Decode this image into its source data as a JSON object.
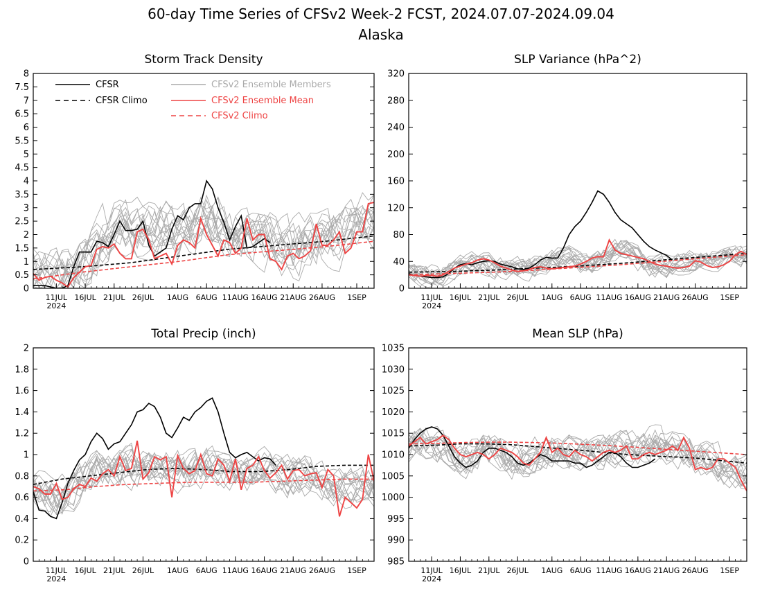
{
  "figure": {
    "title": "60-day Time Series of CFSv2 Week-2 FCST, 2024.07.07-2024.09.04",
    "subtitle": "Alaska"
  },
  "legend": {
    "cfsr": "CFSR",
    "cfsr_climo": "CFSR Climo",
    "members": "CFSv2 Ensemble Members",
    "mean": "CFSv2 Ensemble Mean",
    "cfsv2_climo": "CFSv2 Climo"
  },
  "colors": {
    "cfsr": "#000000",
    "members": "#aaaaaa",
    "mean": "#ee4444"
  },
  "x_axis": {
    "labels": [
      "11JUL",
      "16JUL",
      "21JUL",
      "26JUL",
      "1AUG",
      "6AUG",
      "11AUG",
      "16AUG",
      "21AUG",
      "26AUG",
      "1SEP"
    ],
    "label_days": [
      4,
      9,
      14,
      19,
      25,
      30,
      35,
      40,
      45,
      50,
      56
    ],
    "year_label": "2024",
    "n_days": 60
  },
  "chart_data": [
    {
      "type": "line",
      "title": "Storm Track Density",
      "ylim": [
        0,
        8
      ],
      "yticks": [
        "0",
        "0.5",
        "1",
        "1.5",
        "2",
        "2.5",
        "3",
        "3.5",
        "4",
        "4.5",
        "5",
        "5.5",
        "6",
        "6.5",
        "7",
        "7.5",
        "8"
      ],
      "members_base": [
        0.7,
        0.6,
        0.5,
        0.5,
        0.4,
        0.4,
        0.5,
        0.6,
        0.8,
        1.0,
        1.3,
        1.5,
        1.8,
        2.0,
        2.2,
        2.3,
        2.3,
        2.2,
        2.1,
        2.1,
        2.1,
        2.2,
        2.3,
        2.3,
        2.2,
        2.1,
        2.1,
        2.2,
        2.4,
        2.6,
        2.7,
        2.6,
        2.4,
        2.3,
        2.2,
        2.1,
        2.0,
        2.0,
        2.0,
        1.9,
        1.8,
        1.7,
        1.6,
        1.5,
        1.5,
        1.5,
        1.5,
        1.6,
        1.7,
        1.8,
        1.9,
        2.0,
        2.0,
        2.0,
        2.1,
        2.2,
        2.3,
        2.4,
        2.5,
        2.5
      ],
      "spread": 1.1,
      "series": [
        {
          "name": "CFSR",
          "x": [
            0,
            1,
            2,
            3,
            4,
            5,
            6,
            7,
            8,
            9,
            10,
            11,
            12,
            13,
            14,
            15,
            16,
            17,
            18,
            19,
            20,
            21,
            22,
            23,
            24,
            25,
            26,
            27,
            28,
            29,
            30,
            31,
            32,
            33,
            34,
            35,
            36,
            37,
            38,
            39,
            40,
            41,
            42,
            43
          ],
          "y": [
            0.1,
            0.1,
            0.1,
            0.05,
            0.0,
            0.0,
            0.1,
            0.8,
            1.35,
            1.35,
            1.35,
            1.75,
            1.7,
            1.55,
            2.0,
            2.5,
            2.15,
            2.15,
            2.2,
            2.5,
            1.6,
            1.2,
            1.35,
            1.5,
            2.2,
            2.7,
            2.55,
            3.0,
            3.15,
            3.15,
            4.0,
            3.7,
            3.0,
            2.45,
            1.8,
            2.3,
            2.7,
            1.5,
            1.55,
            1.7,
            1.85,
            1.7,
            null,
            null
          ]
        },
        {
          "name": "CFSR Climo",
          "x": [
            0,
            59
          ],
          "y": [
            0.7,
            1.95
          ],
          "curve": [
            0.7,
            0.8,
            0.95,
            1.2,
            1.45,
            1.6,
            1.75,
            1.95
          ]
        },
        {
          "name": "CFSv2 Ensemble Mean",
          "x_start": 0,
          "y": [
            0.55,
            0.3,
            0.4,
            0.45,
            0.3,
            0.2,
            0.05,
            0.4,
            0.6,
            0.8,
            0.85,
            1.45,
            1.55,
            1.5,
            1.65,
            1.3,
            1.1,
            1.1,
            2.1,
            2.2,
            1.8,
            1.1,
            1.2,
            1.3,
            0.9,
            1.6,
            1.8,
            1.7,
            1.5,
            2.6,
            2.0,
            1.6,
            1.2,
            1.8,
            1.7,
            1.3,
            1.5,
            2.6,
            1.8,
            2.0,
            2.0,
            1.1,
            1.0,
            0.7,
            1.2,
            1.3,
            1.1,
            1.2,
            1.4,
            2.4,
            1.6,
            1.6,
            1.8,
            2.1,
            1.3,
            1.5,
            2.1,
            2.1,
            3.15,
            3.2
          ]
        },
        {
          "name": "CFSv2 Climo",
          "curve": [
            0.35,
            0.6,
            0.8,
            1.0,
            1.25,
            1.4,
            1.55,
            1.75
          ]
        }
      ]
    },
    {
      "type": "line",
      "title": "SLP Variance (hPa^2)",
      "ylim": [
        0,
        320
      ],
      "yticks": [
        "0",
        "40",
        "80",
        "120",
        "160",
        "200",
        "240",
        "280",
        "320"
      ],
      "members_base": [
        22,
        20,
        19,
        18,
        18,
        19,
        21,
        25,
        30,
        35,
        38,
        40,
        40,
        39,
        37,
        35,
        33,
        31,
        30,
        30,
        31,
        32,
        33,
        35,
        38,
        41,
        43,
        44,
        43,
        41,
        39,
        38,
        38,
        40,
        45,
        52,
        58,
        60,
        56,
        50,
        44,
        38,
        34,
        32,
        31,
        31,
        32,
        34,
        37,
        40,
        43,
        45,
        46,
        46,
        46,
        47,
        48,
        49,
        50,
        50
      ],
      "spread": 18,
      "series": [
        {
          "name": "CFSR",
          "x_start": 0,
          "y": [
            22,
            19,
            18,
            17,
            16,
            16,
            17,
            22,
            30,
            35,
            37,
            35,
            38,
            40,
            41,
            40,
            36,
            34,
            32,
            29,
            28,
            30,
            35,
            42,
            46,
            45,
            45,
            60,
            80,
            92,
            100,
            113,
            128,
            145,
            140,
            128,
            113,
            102,
            96,
            90,
            80,
            70,
            62,
            57,
            53,
            49,
            42
          ]
        },
        {
          "name": "CFSR Climo",
          "curve": [
            24,
            25,
            27,
            30,
            33,
            37,
            42,
            47,
            52
          ]
        },
        {
          "name": "CFSv2 Ensemble Mean",
          "x_start": 0,
          "y": [
            20,
            19,
            18,
            19,
            19,
            18,
            20,
            25,
            30,
            33,
            36,
            38,
            42,
            44,
            42,
            38,
            33,
            30,
            27,
            25,
            26,
            28,
            31,
            32,
            30,
            29,
            30,
            31,
            32,
            33,
            36,
            40,
            45,
            47,
            47,
            72,
            57,
            52,
            50,
            48,
            46,
            44,
            40,
            36,
            34,
            33,
            31,
            30,
            31,
            33,
            41,
            39,
            34,
            31,
            32,
            35,
            40,
            50,
            55,
            50
          ]
        },
        {
          "name": "CFSv2 Climo",
          "curve": [
            20,
            22,
            24,
            27,
            31,
            35,
            40,
            45,
            50
          ]
        }
      ]
    },
    {
      "type": "line",
      "title": "Total Precip (inch)",
      "ylim": [
        0,
        2
      ],
      "yticks": [
        "0",
        "0.2",
        "0.4",
        "0.6",
        "0.8",
        "1",
        "1.2",
        "1.4",
        "1.6",
        "1.8",
        "2"
      ],
      "members_base": [
        0.68,
        0.66,
        0.64,
        0.62,
        0.6,
        0.6,
        0.62,
        0.66,
        0.72,
        0.78,
        0.82,
        0.84,
        0.84,
        0.84,
        0.85,
        0.86,
        0.87,
        0.87,
        0.86,
        0.85,
        0.85,
        0.85,
        0.86,
        0.87,
        0.87,
        0.86,
        0.85,
        0.84,
        0.84,
        0.85,
        0.86,
        0.87,
        0.87,
        0.86,
        0.84,
        0.82,
        0.81,
        0.81,
        0.82,
        0.83,
        0.84,
        0.84,
        0.83,
        0.81,
        0.79,
        0.78,
        0.77,
        0.77,
        0.77,
        0.77,
        0.76,
        0.74,
        0.72,
        0.7,
        0.68,
        0.68,
        0.7,
        0.72,
        0.72,
        0.7
      ],
      "spread": 0.2,
      "series": [
        {
          "name": "CFSR",
          "x_start": 0,
          "y": [
            0.65,
            0.48,
            0.47,
            0.42,
            0.4,
            0.55,
            0.73,
            0.85,
            0.95,
            1.0,
            1.12,
            1.2,
            1.15,
            1.05,
            1.1,
            1.12,
            1.2,
            1.28,
            1.4,
            1.42,
            1.48,
            1.45,
            1.35,
            1.2,
            1.16,
            1.25,
            1.35,
            1.32,
            1.4,
            1.44,
            1.5,
            1.53,
            1.4,
            1.2,
            1.02,
            0.97,
            1.0,
            1.02,
            0.98,
            0.94,
            0.97,
            0.96,
            0.9
          ]
        },
        {
          "name": "CFSR Climo",
          "curve": [
            0.72,
            0.77,
            0.8,
            0.83,
            0.86,
            0.87,
            0.86,
            0.84,
            0.84,
            0.86,
            0.89,
            0.9,
            0.9
          ]
        },
        {
          "name": "CFSv2 Ensemble Mean",
          "x_start": 0,
          "y": [
            0.7,
            0.68,
            0.63,
            0.63,
            0.73,
            0.58,
            0.6,
            0.68,
            0.72,
            0.7,
            0.78,
            0.75,
            0.82,
            0.86,
            0.8,
            0.98,
            0.85,
            0.87,
            1.13,
            0.77,
            0.83,
            0.98,
            0.95,
            0.98,
            0.6,
            0.99,
            0.87,
            0.82,
            0.85,
            1.0,
            0.82,
            0.8,
            0.96,
            0.9,
            0.75,
            0.96,
            0.67,
            0.87,
            0.9,
            0.98,
            0.85,
            0.78,
            0.83,
            0.9,
            0.77,
            0.85,
            0.86,
            0.8,
            0.82,
            0.83,
            0.69,
            0.86,
            0.8,
            0.42,
            0.6,
            0.55,
            0.5,
            0.58,
            1.0,
            0.75
          ]
        },
        {
          "name": "CFSv2 Climo",
          "curve": [
            0.66,
            0.67,
            0.7,
            0.72,
            0.73,
            0.74,
            0.74,
            0.74,
            0.75,
            0.76,
            0.77,
            0.77
          ]
        }
      ]
    },
    {
      "type": "line",
      "title": "Mean SLP (hPa)",
      "ylim": [
        985,
        1035
      ],
      "yticks": [
        "985",
        "990",
        "995",
        "1000",
        "1005",
        "1010",
        "1015",
        "1020",
        "1025",
        "1030",
        "1035"
      ],
      "members_base": [
        1011.5,
        1012,
        1012.5,
        1012.5,
        1012,
        1011.5,
        1011,
        1010.5,
        1010,
        1009.5,
        1009.5,
        1010,
        1010.5,
        1011,
        1011,
        1010.5,
        1010,
        1009.5,
        1009,
        1009,
        1009,
        1009.5,
        1010,
        1010.5,
        1011,
        1011.5,
        1011.5,
        1011,
        1010.5,
        1010,
        1010,
        1010.5,
        1011,
        1011,
        1010.5,
        1010.5,
        1011,
        1011.5,
        1011.5,
        1011,
        1011,
        1011.5,
        1012,
        1012.5,
        1012.5,
        1012,
        1011.5,
        1011,
        1010.5,
        1010,
        1009.5,
        1009,
        1008.5,
        1008,
        1007.5,
        1007,
        1006.5,
        1006,
        1005.5,
        1005
      ],
      "spread": 4.5,
      "series": [
        {
          "name": "CFSR",
          "x_start": 0,
          "y": [
            1011.5,
            1013.5,
            1015,
            1016,
            1016.5,
            1016,
            1014.5,
            1012,
            1009.5,
            1008,
            1007,
            1007.5,
            1008.5,
            1010.5,
            1011.5,
            1011.5,
            1011,
            1010.5,
            1009.5,
            1008,
            1007.5,
            1008,
            1009,
            1010,
            1009.5,
            1008.5,
            1008.5,
            1008.5,
            1008.5,
            1008,
            1008,
            1007,
            1007.5,
            1008.5,
            1009.5,
            1010.5,
            1010.5,
            1009.5,
            1008,
            1007,
            1007,
            1007.5,
            1008,
            1009
          ]
        },
        {
          "name": "CFSR Climo",
          "curve": [
            1012,
            1012.2,
            1012.5,
            1012.5,
            1012.3,
            1011.8,
            1011.3,
            1010.8,
            1010.2,
            1009.8,
            1009.5,
            1009.2,
            1008.6,
            1008
          ]
        },
        {
          "name": "CFSv2 Ensemble Mean",
          "x_start": 0,
          "y": [
            1012,
            1013,
            1014,
            1012.5,
            1013,
            1013.5,
            1014.5,
            1013.5,
            1011.5,
            1010,
            1009.5,
            1010,
            1010.5,
            1010,
            1009,
            1010,
            1011.5,
            1011,
            1010.5,
            1009.5,
            1008,
            1007.5,
            1009,
            1010.5,
            1014,
            1010.5,
            1011.5,
            1010,
            1009.5,
            1011,
            1010,
            1009.5,
            1008.5,
            1009.5,
            1010.5,
            1011,
            1010.5,
            1011,
            1012,
            1009,
            1009,
            1010,
            1010.5,
            1010,
            1010.5,
            1011,
            1012,
            1011,
            1014,
            1011.5,
            1006.5,
            1007,
            1006.5,
            1007,
            1009,
            1009,
            1008,
            1007,
            1004,
            1001.5
          ]
        },
        {
          "name": "CFSv2 Climo",
          "curve": [
            1012.5,
            1012.6,
            1012.8,
            1012.9,
            1012.9,
            1012.8,
            1012.6,
            1012.3,
            1012,
            1011.6,
            1011.2,
            1010.8,
            1010.4,
            1010
          ]
        }
      ]
    }
  ]
}
